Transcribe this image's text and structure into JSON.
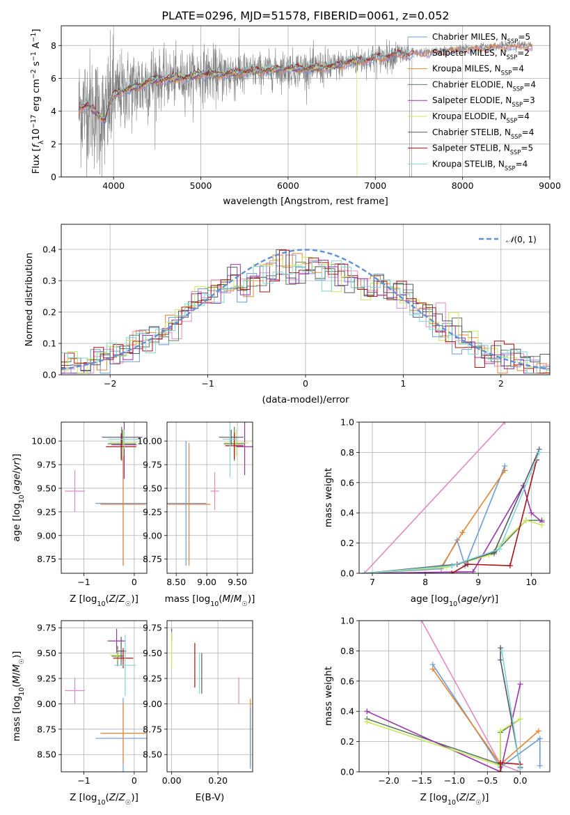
{
  "series_colors": {
    "Chabrier MILES": "#6a9bd5",
    "Salpeter MILES": "#e08ac2",
    "Kroupa MILES": "#e6822e",
    "Chabrier ELODIE": "#5a7d5a",
    "Salpeter ELODIE": "#9932aa",
    "Kroupa ELODIE": "#c8e65a",
    "Chabrier STELIB": "#555566",
    "Salpeter STELIB": "#aa1111",
    "Kroupa STELIB": "#7fd4d4",
    "data": "#808080",
    "normal": "#5f8fd6"
  },
  "chart_data": [
    {
      "id": "spectrum",
      "type": "line",
      "title": "PLATE=0296, MJD=51578, FIBERID=0061, z=0.052",
      "xlabel": "wavelength [Angstrom, rest frame]",
      "ylabel": "Flux [f_λ 10^-17 erg cm^-2 s^-1 A^-1]",
      "xlim": [
        3400,
        9000
      ],
      "ylim": [
        0,
        9.2
      ],
      "xticks": [
        4000,
        5000,
        6000,
        7000,
        8000,
        9000
      ],
      "yticks": [
        0,
        2,
        4,
        6,
        8
      ],
      "legend_position": "right",
      "legend": [
        {
          "name": "Chabrier MILES",
          "nssp": "5"
        },
        {
          "name": "Salpeter MILES",
          "nssp": "2"
        },
        {
          "name": "Kroupa MILES",
          "nssp": "4"
        },
        {
          "name": "Chabrier ELODIE",
          "nssp": "4"
        },
        {
          "name": "Salpeter ELODIE",
          "nssp": "3"
        },
        {
          "name": "Kroupa ELODIE",
          "nssp": "4"
        },
        {
          "name": "Chabrier STELIB",
          "nssp": "4"
        },
        {
          "name": "Salpeter STELIB",
          "nssp": "5"
        },
        {
          "name": "Kroupa STELIB",
          "nssp": "4"
        }
      ],
      "model_curve": [
        [
          3600,
          4.1
        ],
        [
          3700,
          4.4
        ],
        [
          3800,
          3.9
        ],
        [
          3900,
          3.4
        ],
        [
          3950,
          4.4
        ],
        [
          4000,
          5.0
        ],
        [
          4100,
          5.2
        ],
        [
          4200,
          5.4
        ],
        [
          4300,
          5.5
        ],
        [
          4400,
          5.8
        ],
        [
          4500,
          5.9
        ],
        [
          4700,
          6.0
        ],
        [
          4900,
          6.1
        ],
        [
          5000,
          6.3
        ],
        [
          5200,
          6.2
        ],
        [
          5500,
          6.4
        ],
        [
          5800,
          6.5
        ],
        [
          6000,
          6.6
        ],
        [
          6300,
          6.6
        ],
        [
          6500,
          6.7
        ],
        [
          6700,
          7.0
        ],
        [
          7000,
          7.2
        ],
        [
          7200,
          7.4
        ],
        [
          7400,
          7.5
        ],
        [
          7600,
          7.6
        ],
        [
          8000,
          7.8
        ],
        [
          8500,
          8.0
        ],
        [
          8800,
          8.0
        ]
      ],
      "data_noise": [
        [
          3600,
          4000,
          3.2
        ],
        [
          4000,
          4500,
          2.2
        ],
        [
          4500,
          5500,
          1.5
        ],
        [
          5500,
          6500,
          1.0
        ],
        [
          6500,
          7400,
          0.8
        ],
        [
          7400,
          8800,
          0.25
        ]
      ]
    },
    {
      "id": "residual-histogram",
      "type": "bar",
      "xlabel": "(data-model)/error",
      "ylabel": "Normed distribution",
      "xlim": [
        -2.5,
        2.5
      ],
      "ylim": [
        0,
        0.48
      ],
      "xticks": [
        -2,
        -1,
        0,
        1,
        2
      ],
      "yticks": [
        0.0,
        0.1,
        0.2,
        0.3,
        0.4
      ],
      "legend": "N(0, 1)",
      "legend_position": "top-right",
      "bin_width": 0.1
    },
    {
      "id": "age-vs-z",
      "type": "scatter",
      "xlabel": "Z [log10(Z/Z☉)]",
      "ylabel": "age [log10(age/yr)]",
      "xlim": [
        -1.45,
        0.25
      ],
      "ylim": [
        8.6,
        10.2
      ],
      "xticks": [
        -1,
        0
      ],
      "yticks": [
        8.75,
        9.0,
        9.25,
        9.5,
        9.75,
        10.0
      ],
      "points": [
        {
          "series": "Chabrier MILES",
          "x": -0.22,
          "xerr": 0.55,
          "y": 9.34,
          "yerr": 0.66
        },
        {
          "series": "Kroupa MILES",
          "x": -0.22,
          "xerr": 0.45,
          "y": 9.33,
          "yerr": 0.65
        },
        {
          "series": "Salpeter MILES",
          "x": -1.18,
          "xerr": 0.2,
          "y": 9.47,
          "yerr": 0.22
        },
        {
          "series": "Chabrier ELODIE",
          "x": -0.25,
          "xerr": 0.28,
          "y": 9.97,
          "yerr": 0.18
        },
        {
          "series": "Salpeter ELODIE",
          "x": -0.2,
          "xerr": 0.25,
          "y": 9.96,
          "yerr": 0.36
        },
        {
          "series": "Kroupa ELODIE",
          "x": -0.22,
          "xerr": 0.28,
          "y": 9.98,
          "yerr": 0.14
        },
        {
          "series": "Chabrier STELIB",
          "x": -0.24,
          "xerr": 0.4,
          "y": 10.04,
          "yerr": 0.08
        },
        {
          "series": "Salpeter STELIB",
          "x": -0.26,
          "xerr": 0.3,
          "y": 9.94,
          "yerr": 0.14
        },
        {
          "series": "Kroupa STELIB",
          "x": -0.2,
          "xerr": 0.32,
          "y": 10.02,
          "yerr": 0.1
        }
      ]
    },
    {
      "id": "age-vs-mass",
      "type": "scatter",
      "xlabel": "mass [log10(M/M☉)]",
      "ylabel": "",
      "xlim": [
        8.35,
        9.75
      ],
      "ylim": [
        8.6,
        10.2
      ],
      "xticks": [
        8.5,
        9.0,
        9.5
      ],
      "yticks": [
        8.75,
        9.0,
        9.25,
        9.5,
        9.75,
        10.0
      ],
      "points": [
        {
          "series": "Chabrier MILES",
          "x": 8.66,
          "xerr": 0.33,
          "y": 9.34,
          "yerr": 0.66
        },
        {
          "series": "Kroupa MILES",
          "x": 8.71,
          "xerr": 0.35,
          "y": 9.33,
          "yerr": 0.65
        },
        {
          "series": "Salpeter MILES",
          "x": 9.13,
          "xerr": 0.07,
          "y": 9.47,
          "yerr": 0.2
        },
        {
          "series": "Chabrier ELODIE",
          "x": 9.45,
          "xerr": 0.17,
          "y": 9.97,
          "yerr": 0.18
        },
        {
          "series": "Salpeter ELODIE",
          "x": 9.62,
          "xerr": 0.15,
          "y": 9.94,
          "yerr": 0.3
        },
        {
          "series": "Kroupa ELODIE",
          "x": 9.48,
          "xerr": 0.2,
          "y": 9.98,
          "yerr": 0.14
        },
        {
          "series": "Chabrier STELIB",
          "x": 9.4,
          "xerr": 0.2,
          "y": 10.04,
          "yerr": 0.08
        },
        {
          "series": "Salpeter STELIB",
          "x": 9.45,
          "xerr": 0.15,
          "y": 9.95,
          "yerr": 0.14
        },
        {
          "series": "Kroupa STELIB",
          "x": 9.38,
          "xerr": 0.12,
          "y": 10.02,
          "yerr": 0.4
        }
      ]
    },
    {
      "id": "mass-weight-vs-age",
      "type": "line",
      "xlabel": "age [log10(age/yr)]",
      "ylabel": "mass weight",
      "xlim": [
        6.75,
        10.35
      ],
      "ylim": [
        0,
        1.0
      ],
      "xticks": [
        7,
        8,
        9,
        10
      ],
      "yticks": [
        0.0,
        0.2,
        0.4,
        0.6,
        0.8,
        1.0
      ],
      "series": [
        {
          "series": "Salpeter MILES",
          "points": [
            [
              6.85,
              0.0
            ],
            [
              9.5,
              1.0
            ]
          ]
        },
        {
          "series": "Chabrier MILES",
          "points": [
            [
              6.85,
              0.0
            ],
            [
              8.3,
              0.03
            ],
            [
              8.6,
              0.22
            ],
            [
              8.75,
              0.05
            ],
            [
              9.5,
              0.71
            ]
          ]
        },
        {
          "series": "Kroupa MILES",
          "points": [
            [
              6.85,
              0.0
            ],
            [
              8.3,
              0.04
            ],
            [
              8.7,
              0.27
            ],
            [
              9.5,
              0.68
            ]
          ]
        },
        {
          "series": "Chabrier ELODIE",
          "points": [
            [
              6.85,
              0.0
            ],
            [
              8.5,
              0.05
            ],
            [
              9.3,
              0.13
            ],
            [
              9.9,
              0.35
            ],
            [
              10.2,
              0.35
            ]
          ]
        },
        {
          "series": "Salpeter ELODIE",
          "points": [
            [
              6.85,
              0.0
            ],
            [
              8.9,
              0.01
            ],
            [
              9.85,
              0.58
            ],
            [
              10.0,
              0.4
            ],
            [
              10.2,
              0.34
            ]
          ]
        },
        {
          "series": "Kroupa ELODIE",
          "points": [
            [
              6.85,
              0.0
            ],
            [
              8.4,
              0.04
            ],
            [
              9.2,
              0.12
            ],
            [
              9.9,
              0.35
            ],
            [
              10.2,
              0.32
            ]
          ]
        },
        {
          "series": "Chabrier STELIB",
          "points": [
            [
              6.85,
              0.0
            ],
            [
              8.6,
              0.06
            ],
            [
              9.3,
              0.14
            ],
            [
              10.15,
              0.82
            ]
          ]
        },
        {
          "series": "Salpeter STELIB",
          "points": [
            [
              8.5,
              0.0
            ],
            [
              8.8,
              0.06
            ],
            [
              9.6,
              0.05
            ],
            [
              10.1,
              0.75
            ]
          ]
        },
        {
          "series": "Kroupa STELIB",
          "points": [
            [
              6.85,
              0.0
            ],
            [
              8.5,
              0.05
            ],
            [
              9.4,
              0.16
            ],
            [
              10.15,
              0.8
            ]
          ]
        }
      ]
    },
    {
      "id": "mass-vs-z",
      "type": "scatter",
      "xlabel": "Z [log10(Z/Z☉)]",
      "ylabel": "mass [log10(M/M☉)]",
      "xlim": [
        -1.45,
        0.25
      ],
      "ylim": [
        8.33,
        9.82
      ],
      "xticks": [
        -1,
        0
      ],
      "yticks": [
        8.5,
        8.75,
        9.0,
        9.25,
        9.5,
        9.75
      ],
      "points": [
        {
          "series": "Chabrier MILES",
          "x": -0.22,
          "xerr": 0.55,
          "y": 8.66,
          "yerr": 0.4
        },
        {
          "series": "Kroupa MILES",
          "x": -0.22,
          "xerr": 0.45,
          "y": 8.71,
          "yerr": 0.3
        },
        {
          "series": "Salpeter MILES",
          "x": -1.18,
          "xerr": 0.2,
          "y": 9.13,
          "yerr": 0.13
        },
        {
          "series": "Chabrier ELODIE",
          "x": -0.33,
          "xerr": 0.12,
          "y": 9.47,
          "yerr": 0.1
        },
        {
          "series": "Salpeter ELODIE",
          "x": -0.35,
          "xerr": 0.18,
          "y": 9.62,
          "yerr": 0.12
        },
        {
          "series": "Kroupa ELODIE",
          "x": -0.34,
          "xerr": 0.14,
          "y": 9.48,
          "yerr": 0.06
        },
        {
          "series": "Chabrier STELIB",
          "x": -0.26,
          "xerr": 0.1,
          "y": 9.52,
          "yerr": 0.14
        },
        {
          "series": "Salpeter STELIB",
          "x": -0.22,
          "xerr": 0.2,
          "y": 9.45,
          "yerr": 0.1
        },
        {
          "series": "Kroupa STELIB",
          "x": -0.18,
          "xerr": 0.22,
          "y": 9.38,
          "yerr": 0.3
        }
      ]
    },
    {
      "id": "mass-vs-ebv",
      "type": "scatter",
      "xlabel": "E(B-V)",
      "ylabel": "",
      "xlim": [
        -0.02,
        0.35
      ],
      "ylim": [
        8.33,
        9.82
      ],
      "xticks": [
        0.0,
        0.2
      ],
      "yticks": [
        8.5,
        8.75,
        9.0,
        9.25,
        9.5,
        9.75
      ],
      "points": [
        {
          "series": "Salpeter ELODIE",
          "x": 0.0,
          "xerr": 0,
          "y": 9.68,
          "yerr": 0.06
        },
        {
          "series": "Kroupa ELODIE",
          "x": 0.0,
          "xerr": 0,
          "y": 9.53,
          "yerr": 0.18
        },
        {
          "series": "Salpeter STELIB",
          "x": 0.1,
          "xerr": 0,
          "y": 9.38,
          "yerr": 0.22
        },
        {
          "series": "Chabrier STELIB",
          "x": 0.13,
          "xerr": 0,
          "y": 9.3,
          "yerr": 0.2
        },
        {
          "series": "Kroupa STELIB",
          "x": 0.12,
          "xerr": 0,
          "y": 9.3,
          "yerr": 0.2
        },
        {
          "series": "Salpeter MILES",
          "x": 0.29,
          "xerr": 0,
          "y": 9.13,
          "yerr": 0.13
        },
        {
          "series": "Kroupa MILES",
          "x": 0.34,
          "xerr": 0,
          "y": 8.72,
          "yerr": 0.33
        },
        {
          "series": "Chabrier MILES",
          "x": 0.34,
          "xerr": 0,
          "y": 8.66,
          "yerr": 0.3
        }
      ]
    },
    {
      "id": "mass-weight-vs-z",
      "type": "line",
      "xlabel": "Z [log10(Z/Z☉)]",
      "ylabel": "mass weight",
      "xlim": [
        -2.45,
        0.45
      ],
      "ylim": [
        0,
        1.0
      ],
      "xticks": [
        -2.0,
        -1.5,
        -1.0,
        -0.5,
        0.0
      ],
      "yticks": [
        0.0,
        0.2,
        0.4,
        0.6,
        0.8,
        1.0
      ],
      "series": [
        {
          "series": "Salpeter MILES",
          "points": [
            [
              -1.5,
              1.0
            ],
            [
              -0.3,
              0.05
            ],
            [
              0.0,
              0.0
            ]
          ]
        },
        {
          "series": "Chabrier MILES",
          "points": [
            [
              -1.33,
              0.71
            ],
            [
              -0.3,
              0.03
            ],
            [
              0.3,
              0.22
            ],
            [
              0.3,
              0.04
            ]
          ]
        },
        {
          "series": "Kroupa MILES",
          "points": [
            [
              -1.33,
              0.68
            ],
            [
              -0.3,
              0.05
            ],
            [
              0.28,
              0.27
            ]
          ]
        },
        {
          "series": "Chabrier ELODIE",
          "points": [
            [
              -2.33,
              0.35
            ],
            [
              -0.3,
              0.05
            ],
            [
              -0.3,
              0.26
            ],
            [
              0.0,
              0.35
            ]
          ]
        },
        {
          "series": "Salpeter ELODIE",
          "points": [
            [
              -2.33,
              0.4
            ],
            [
              -0.3,
              0.0
            ],
            [
              0.0,
              0.58
            ]
          ]
        },
        {
          "series": "Kroupa ELODIE",
          "points": [
            [
              -2.33,
              0.33
            ],
            [
              -0.3,
              0.04
            ],
            [
              -0.3,
              0.27
            ],
            [
              0.0,
              0.35
            ]
          ]
        },
        {
          "series": "Chabrier STELIB",
          "points": [
            [
              -0.3,
              0.82
            ],
            [
              -0.3,
              0.74
            ],
            [
              0.0,
              0.03
            ]
          ]
        },
        {
          "series": "Salpeter STELIB",
          "points": [
            [
              -0.3,
              0.0
            ],
            [
              -0.3,
              0.06
            ],
            [
              0.0,
              0.05
            ]
          ]
        },
        {
          "series": "Kroupa STELIB",
          "points": [
            [
              -0.28,
              0.8
            ],
            [
              0.0,
              0.02
            ]
          ]
        }
      ]
    }
  ]
}
